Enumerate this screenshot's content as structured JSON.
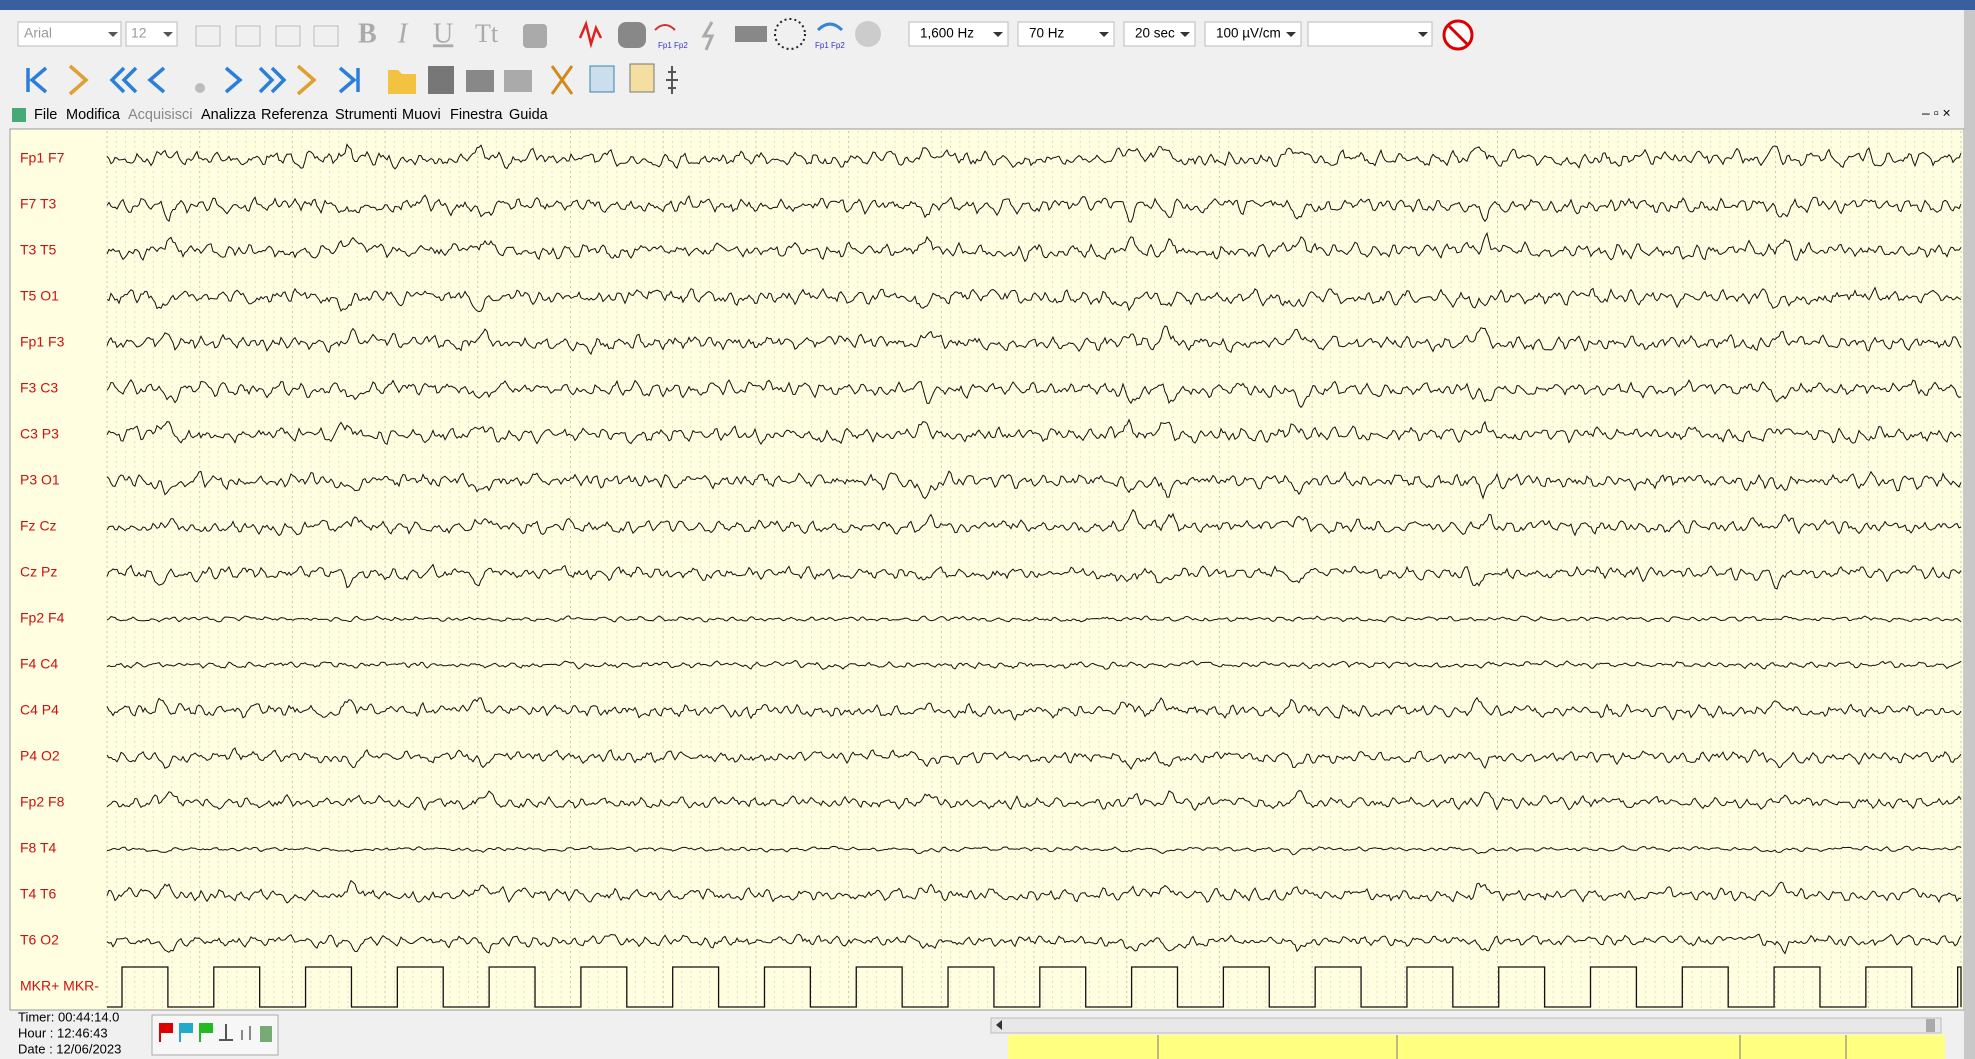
{
  "toolbar": {
    "font": "Arial",
    "font_size": "12",
    "settings": [
      "1,600 Hz",
      "70 Hz",
      "20 sec",
      "100 µV/cm"
    ]
  },
  "menu": [
    "File",
    "Modifica",
    "Acquisisci",
    "Analizza",
    "Referenza",
    "Strumenti",
    "Muovi",
    "Finestra",
    "Guida"
  ],
  "channels": [
    "Fp1 F7",
    "F7 T3",
    "T3 T5",
    "T5 O1",
    "Fp1 F3",
    "F3 C3",
    "C3 P3",
    "P3 O1",
    "Fz Cz",
    "Cz Pz",
    "Fp2 F4",
    "F4 C4",
    "C4 P4",
    "P4 O2",
    "Fp2 F8",
    "F8 T4",
    "T4 T6",
    "T6 O2"
  ],
  "marker_channel": "MKR+ MKR-",
  "status": {
    "timer": "Timer: 00:44:14.0",
    "hour": "Hour : 12:46:43",
    "date": "Date : 12/06/2023"
  }
}
